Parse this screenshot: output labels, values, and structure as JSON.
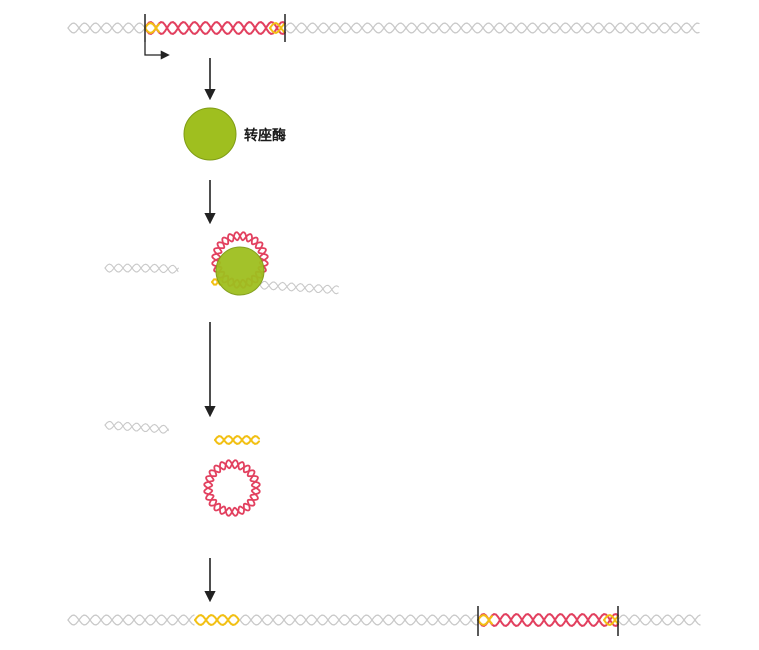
{
  "transposase_label": "转座酶",
  "colors": {
    "dna": "#c9c9c9",
    "transposon": "#e2405f",
    "inverted_repeat": "#f2c014",
    "enzyme": "#9fbf1f",
    "enzyme_edge": "#7f9c15",
    "arrow": "#222222"
  }
}
